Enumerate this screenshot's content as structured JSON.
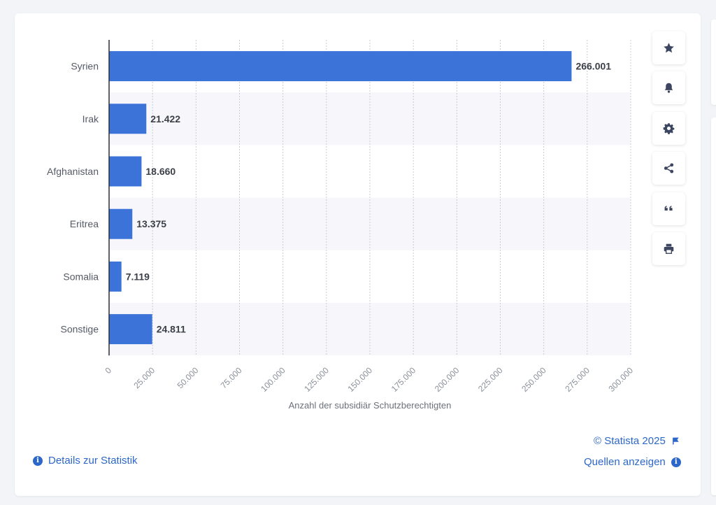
{
  "chart_data": {
    "type": "bar",
    "orientation": "horizontal",
    "categories": [
      "Syrien",
      "Irak",
      "Afghanistan",
      "Eritrea",
      "Somalia",
      "Sonstige"
    ],
    "values": [
      266001,
      21422,
      18660,
      13375,
      7119,
      24811
    ],
    "value_labels": [
      "266.001",
      "21.422",
      "18.660",
      "13.375",
      "7.119",
      "24.811"
    ],
    "xlim": [
      0,
      300000
    ],
    "ticks": [
      0,
      25000,
      50000,
      75000,
      100000,
      125000,
      150000,
      175000,
      200000,
      225000,
      250000,
      275000,
      300000
    ],
    "tick_labels": [
      "0",
      "25.000",
      "50.000",
      "75.000",
      "100.000",
      "125.000",
      "150.000",
      "175.000",
      "200.000",
      "225.000",
      "250.000",
      "275.000",
      "300.000"
    ],
    "xlabel": "Anzahl der subsidiär Schutzberechtigten",
    "ylabel": "",
    "grid": true,
    "bar_color": "#3b73d9",
    "band_color": "#f7f7fb"
  },
  "toolbar": {
    "buttons": [
      {
        "name": "favorite-button",
        "icon": "star-icon"
      },
      {
        "name": "notification-button",
        "icon": "bell-icon"
      },
      {
        "name": "settings-button",
        "icon": "gear-icon"
      },
      {
        "name": "share-button",
        "icon": "share-icon"
      },
      {
        "name": "cite-button",
        "icon": "quote-icon"
      },
      {
        "name": "print-button",
        "icon": "printer-icon"
      }
    ]
  },
  "footer": {
    "details_label": "Details zur Statistik",
    "copyright": "© Statista 2025",
    "sources_label": "Quellen anzeigen",
    "link_color": "#2c67c9"
  }
}
